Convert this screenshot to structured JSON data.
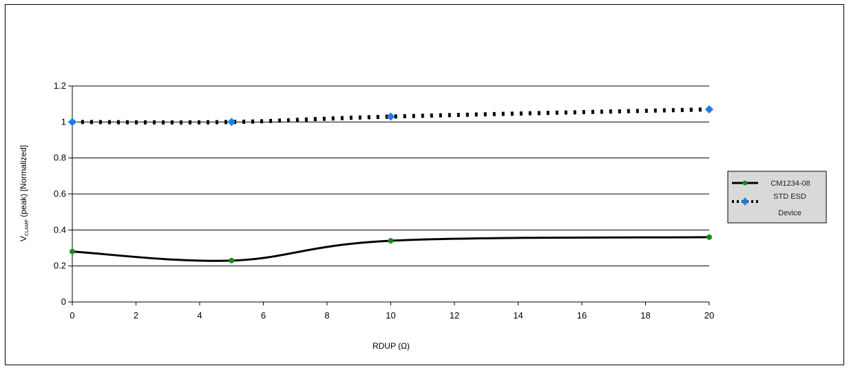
{
  "chart_data": {
    "type": "line",
    "title": "",
    "xlabel": "RDUP (Ω)",
    "ylabel": "V",
    "ylabel_subscript": "CLAMP",
    "ylabel_rest": " (peak) [Normalized]",
    "x_ticks": [
      "0",
      "2",
      "4",
      "6",
      "8",
      "10",
      "12",
      "14",
      "16",
      "18",
      "20"
    ],
    "y_ticks": [
      "0",
      "0.2",
      "0.4",
      "0.6",
      "0.8",
      "1",
      "1.2"
    ],
    "xlim": [
      0,
      20
    ],
    "ylim": [
      0,
      1.2
    ],
    "grid": "horizontal",
    "legend_position": "right",
    "series": [
      {
        "name": "CM1234-08",
        "line_style": "solid",
        "line_color": "#000000",
        "marker_color": "#1a8a1a",
        "x": [
          0,
          5,
          10,
          20
        ],
        "y": [
          0.28,
          0.23,
          0.34,
          0.36
        ]
      },
      {
        "name": "STD ESD Device",
        "legend_lines": [
          "STD ESD",
          "Device"
        ],
        "line_style": "dotted",
        "line_color": "#000000",
        "marker_color": "#1e7fe0",
        "x": [
          0,
          5,
          10,
          20
        ],
        "y": [
          1.0,
          1.0,
          1.03,
          1.07
        ]
      }
    ]
  }
}
